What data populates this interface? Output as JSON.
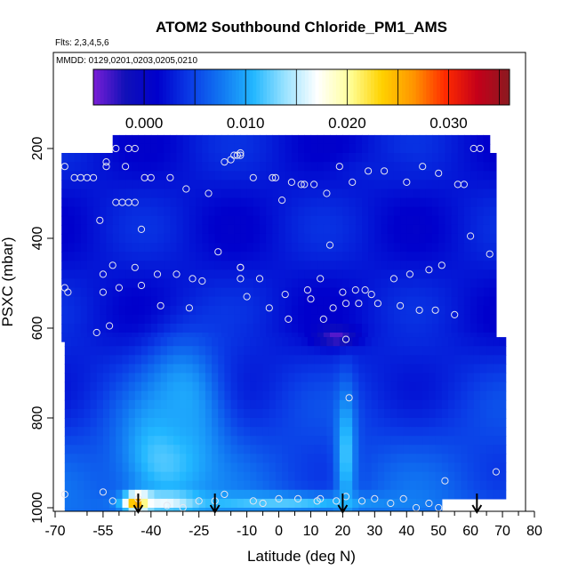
{
  "chart_data": {
    "type": "heatmap",
    "title": "ATOM2 Southbound Chloride_PM1_AMS",
    "flights_label": "Flts: 2,3,4,5,6",
    "dates_label": "MMDD: 0129,0201,0203,0205,0210",
    "xlabel": "Latitude (deg N)",
    "ylabel": "PSXC (mbar)",
    "xlim": [
      -70,
      80
    ],
    "ylim": [
      1000,
      0
    ],
    "x_ticks": [
      -70,
      -55,
      -40,
      -25,
      -10,
      0,
      10,
      20,
      30,
      40,
      50,
      60,
      70,
      80
    ],
    "x_tick_labels": [
      "-70",
      "-55",
      "-40",
      "-25",
      "-10",
      "0",
      "10",
      "20",
      "30",
      "40",
      "50",
      "60",
      "70",
      "80"
    ],
    "x_minor_ticks": [
      -60,
      -50,
      -45,
      -35,
      -30,
      -20,
      -15,
      -5,
      5,
      15,
      25,
      35,
      45,
      55,
      65,
      75
    ],
    "y_ticks": [
      200,
      400,
      600,
      800,
      1000
    ],
    "y_tick_labels": [
      "200",
      "400",
      "600",
      "800",
      "1000"
    ],
    "colorbar": {
      "min": -0.005,
      "max": 0.036,
      "ticks": [
        0.0,
        0.01,
        0.02,
        0.03
      ],
      "tick_labels": [
        "0.000",
        "0.010",
        "0.020",
        "0.030"
      ],
      "colors": [
        "#7a1fd6",
        "#1010b8",
        "#0000cc",
        "#0a3ae6",
        "#1177f2",
        "#22b7ff",
        "#9be3ff",
        "#ffffff",
        "#ffff9a",
        "#ffd200",
        "#ff9500",
        "#ff2a00",
        "#c4001a",
        "#8a1a20"
      ],
      "boundaries": [
        -0.005,
        0.0,
        0.005,
        0.01,
        0.015,
        0.02,
        0.025,
        0.03,
        0.035,
        0.036
      ]
    },
    "layers": [
      {
        "p_top": 170,
        "p_bot": 210,
        "lat_min": -52,
        "lat_max": 65
      },
      {
        "p_top": 210,
        "p_bot": 620,
        "lat_min": -68,
        "lat_max": 68
      },
      {
        "p_top": 620,
        "p_bot": 980,
        "lat_min": -67,
        "lat_max": 71
      },
      {
        "p_top": 980,
        "p_bot": 1020,
        "lat_min": -67,
        "lat_max": 51
      }
    ],
    "enhancements": [
      {
        "lat": -35,
        "p": 880,
        "width": 14,
        "depth": 120,
        "value": 0.013
      },
      {
        "lat": -30,
        "p": 760,
        "width": 12,
        "depth": 140,
        "value": 0.01
      },
      {
        "lat": 21,
        "p": 880,
        "width": 3,
        "depth": 140,
        "value": 0.012
      },
      {
        "lat": 18,
        "p": 620,
        "width": 6,
        "depth": 20,
        "value": -0.004
      },
      {
        "lat": 30,
        "p": 250,
        "width": 12,
        "depth": 30,
        "value": 0.003
      },
      {
        "lat": -44,
        "p": 990,
        "width": 4,
        "depth": 20,
        "value": 0.034
      },
      {
        "lat": -35,
        "p": 990,
        "width": 10,
        "depth": 20,
        "value": 0.018
      },
      {
        "lat": 0,
        "p": 990,
        "width": 30,
        "depth": 20,
        "value": 0.012
      }
    ],
    "points": [
      [
        -67,
        970
      ],
      [
        -67,
        240
      ],
      [
        -67,
        510
      ],
      [
        -66,
        520
      ],
      [
        -64,
        265
      ],
      [
        -62,
        265
      ],
      [
        -60,
        265
      ],
      [
        -58,
        265
      ],
      [
        -57,
        610
      ],
      [
        -56,
        360
      ],
      [
        -55,
        480
      ],
      [
        -55,
        520
      ],
      [
        -55,
        965
      ],
      [
        -54,
        230
      ],
      [
        -54,
        240
      ],
      [
        -53,
        595
      ],
      [
        -52,
        460
      ],
      [
        -52,
        985
      ],
      [
        -51,
        320
      ],
      [
        -51,
        200
      ],
      [
        -50,
        510
      ],
      [
        -49,
        320
      ],
      [
        -48,
        240
      ],
      [
        -47,
        200
      ],
      [
        -47,
        320
      ],
      [
        -45,
        320
      ],
      [
        -45,
        200
      ],
      [
        -45,
        465
      ],
      [
        -44,
        980
      ],
      [
        -43,
        380
      ],
      [
        -43,
        505
      ],
      [
        -42,
        265
      ],
      [
        -40,
        265
      ],
      [
        -38,
        480
      ],
      [
        -37,
        550
      ],
      [
        -35,
        995
      ],
      [
        -34,
        265
      ],
      [
        -32,
        480
      ],
      [
        -30,
        1000
      ],
      [
        -29,
        290
      ],
      [
        -28,
        555
      ],
      [
        -27,
        490
      ],
      [
        -25,
        985
      ],
      [
        -24,
        495
      ],
      [
        -22,
        300
      ],
      [
        -20,
        985
      ],
      [
        -19,
        430
      ],
      [
        -17,
        970
      ],
      [
        -17,
        230
      ],
      [
        -15,
        225
      ],
      [
        -14,
        215
      ],
      [
        -13,
        215
      ],
      [
        -12,
        210
      ],
      [
        -12,
        215
      ],
      [
        -12,
        490
      ],
      [
        -12,
        465
      ],
      [
        -12,
        465
      ],
      [
        -10,
        530
      ],
      [
        -8,
        265
      ],
      [
        -8,
        985
      ],
      [
        -6,
        490
      ],
      [
        -5,
        990
      ],
      [
        -3,
        555
      ],
      [
        -2,
        265
      ],
      [
        -1,
        265
      ],
      [
        0,
        980
      ],
      [
        1,
        315
      ],
      [
        2,
        525
      ],
      [
        3,
        580
      ],
      [
        4,
        275
      ],
      [
        6,
        980
      ],
      [
        7,
        280
      ],
      [
        8,
        280
      ],
      [
        9,
        515
      ],
      [
        10,
        535
      ],
      [
        11,
        280
      ],
      [
        12,
        985
      ],
      [
        13,
        490
      ],
      [
        13,
        980
      ],
      [
        14,
        580
      ],
      [
        15,
        300
      ],
      [
        16,
        415
      ],
      [
        17,
        555
      ],
      [
        18,
        985
      ],
      [
        19,
        240
      ],
      [
        20,
        520
      ],
      [
        21,
        975
      ],
      [
        21,
        625
      ],
      [
        21,
        545
      ],
      [
        22,
        755
      ],
      [
        23,
        275
      ],
      [
        24,
        515
      ],
      [
        25,
        545
      ],
      [
        26,
        985
      ],
      [
        27,
        515
      ],
      [
        28,
        250
      ],
      [
        29,
        525
      ],
      [
        30,
        980
      ],
      [
        31,
        545
      ],
      [
        33,
        250
      ],
      [
        35,
        990
      ],
      [
        36,
        490
      ],
      [
        38,
        550
      ],
      [
        39,
        980
      ],
      [
        40,
        275
      ],
      [
        41,
        480
      ],
      [
        43,
        1000
      ],
      [
        44,
        560
      ],
      [
        45,
        240
      ],
      [
        47,
        470
      ],
      [
        47,
        990
      ],
      [
        49,
        560
      ],
      [
        50,
        255
      ],
      [
        50,
        1000
      ],
      [
        51,
        460
      ],
      [
        52,
        940
      ],
      [
        55,
        570
      ],
      [
        56,
        280
      ],
      [
        58,
        280
      ],
      [
        60,
        395
      ],
      [
        61,
        200
      ],
      [
        63,
        200
      ],
      [
        66,
        435
      ],
      [
        68,
        920
      ]
    ],
    "flight_markers_lat": [
      -44,
      -20,
      20,
      62
    ]
  }
}
